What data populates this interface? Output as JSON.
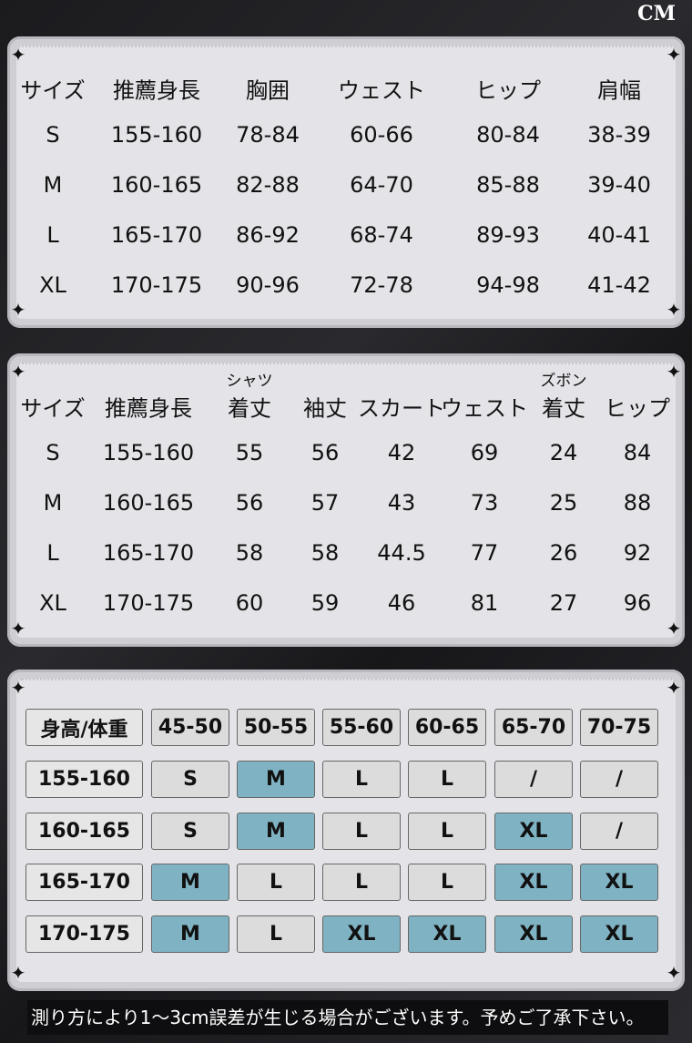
{
  "unit": "CM",
  "table1": {
    "headers": [
      "サイズ",
      "推薦身長",
      "胸囲",
      "ウェスト",
      "ヒップ",
      "肩幅"
    ],
    "rows": [
      [
        "S",
        "155-160",
        "78-84",
        "60-66",
        "80-84",
        "38-39"
      ],
      [
        "M",
        "160-165",
        "82-88",
        "64-70",
        "85-88",
        "39-40"
      ],
      [
        "L",
        "165-170",
        "86-92",
        "68-74",
        "89-93",
        "40-41"
      ],
      [
        "XL",
        "170-175",
        "90-96",
        "72-78",
        "94-98",
        "41-42"
      ]
    ]
  },
  "table2": {
    "group_labels": {
      "shirt": "シャツ",
      "pants": "ズボン"
    },
    "headers": [
      "サイズ",
      "推薦身長",
      "着丈",
      "袖丈",
      "スカート",
      "ウェスト",
      "着丈",
      "ヒップ"
    ],
    "rows": [
      [
        "S",
        "155-160",
        "55",
        "56",
        "42",
        "69",
        "24",
        "84"
      ],
      [
        "M",
        "160-165",
        "56",
        "57",
        "43",
        "73",
        "25",
        "88"
      ],
      [
        "L",
        "165-170",
        "58",
        "58",
        "44.5",
        "77",
        "26",
        "92"
      ],
      [
        "XL",
        "170-175",
        "60",
        "59",
        "46",
        "81",
        "27",
        "96"
      ]
    ]
  },
  "table3": {
    "corner": "身高/体重",
    "weights": [
      "45-50",
      "50-55",
      "55-60",
      "60-65",
      "65-70",
      "70-75"
    ],
    "rows": [
      {
        "height": "155-160",
        "sizes": [
          "S",
          "M",
          "L",
          "L",
          "/",
          "/"
        ],
        "highlight": [
          false,
          true,
          false,
          false,
          false,
          false
        ]
      },
      {
        "height": "160-165",
        "sizes": [
          "S",
          "M",
          "L",
          "L",
          "XL",
          "/"
        ],
        "highlight": [
          false,
          true,
          false,
          false,
          true,
          false
        ]
      },
      {
        "height": "165-170",
        "sizes": [
          "M",
          "L",
          "L",
          "L",
          "XL",
          "XL"
        ],
        "highlight": [
          true,
          false,
          false,
          false,
          true,
          true
        ]
      },
      {
        "height": "170-175",
        "sizes": [
          "M",
          "L",
          "XL",
          "XL",
          "XL",
          "XL"
        ],
        "highlight": [
          true,
          false,
          true,
          true,
          true,
          true
        ]
      }
    ],
    "highlight_color": "#7fb3c3"
  },
  "footer_note": "測り方により1～3cm誤差が生じる場合がございます。予めご了承下さい。"
}
